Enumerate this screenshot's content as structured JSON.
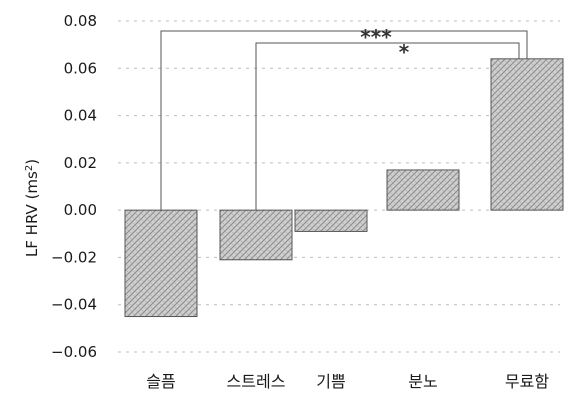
{
  "chart_data": {
    "type": "bar",
    "categories": [
      "슬픔",
      "스트레스",
      "기쁨",
      "분노",
      "무료함"
    ],
    "values": [
      -0.045,
      -0.021,
      -0.009,
      0.017,
      0.064
    ],
    "ylabel": "LF HRV (ms²)",
    "ylabel_main": "LF HRV (ms",
    "ylabel_sup": "2",
    "ylabel_close": ")",
    "ylim": [
      -0.06,
      0.08
    ],
    "yticks": [
      "0.08",
      "0.06",
      "0.04",
      "0.02",
      "0.00",
      "-0.02",
      "-0.04",
      "-0.06"
    ],
    "grid": true,
    "bar_color": "#c4c4c4",
    "annotations": [
      {
        "from": "슬픔",
        "to": "무료함",
        "label": "***"
      },
      {
        "from": "스트레스",
        "to": "무료함",
        "label": "*"
      }
    ]
  }
}
